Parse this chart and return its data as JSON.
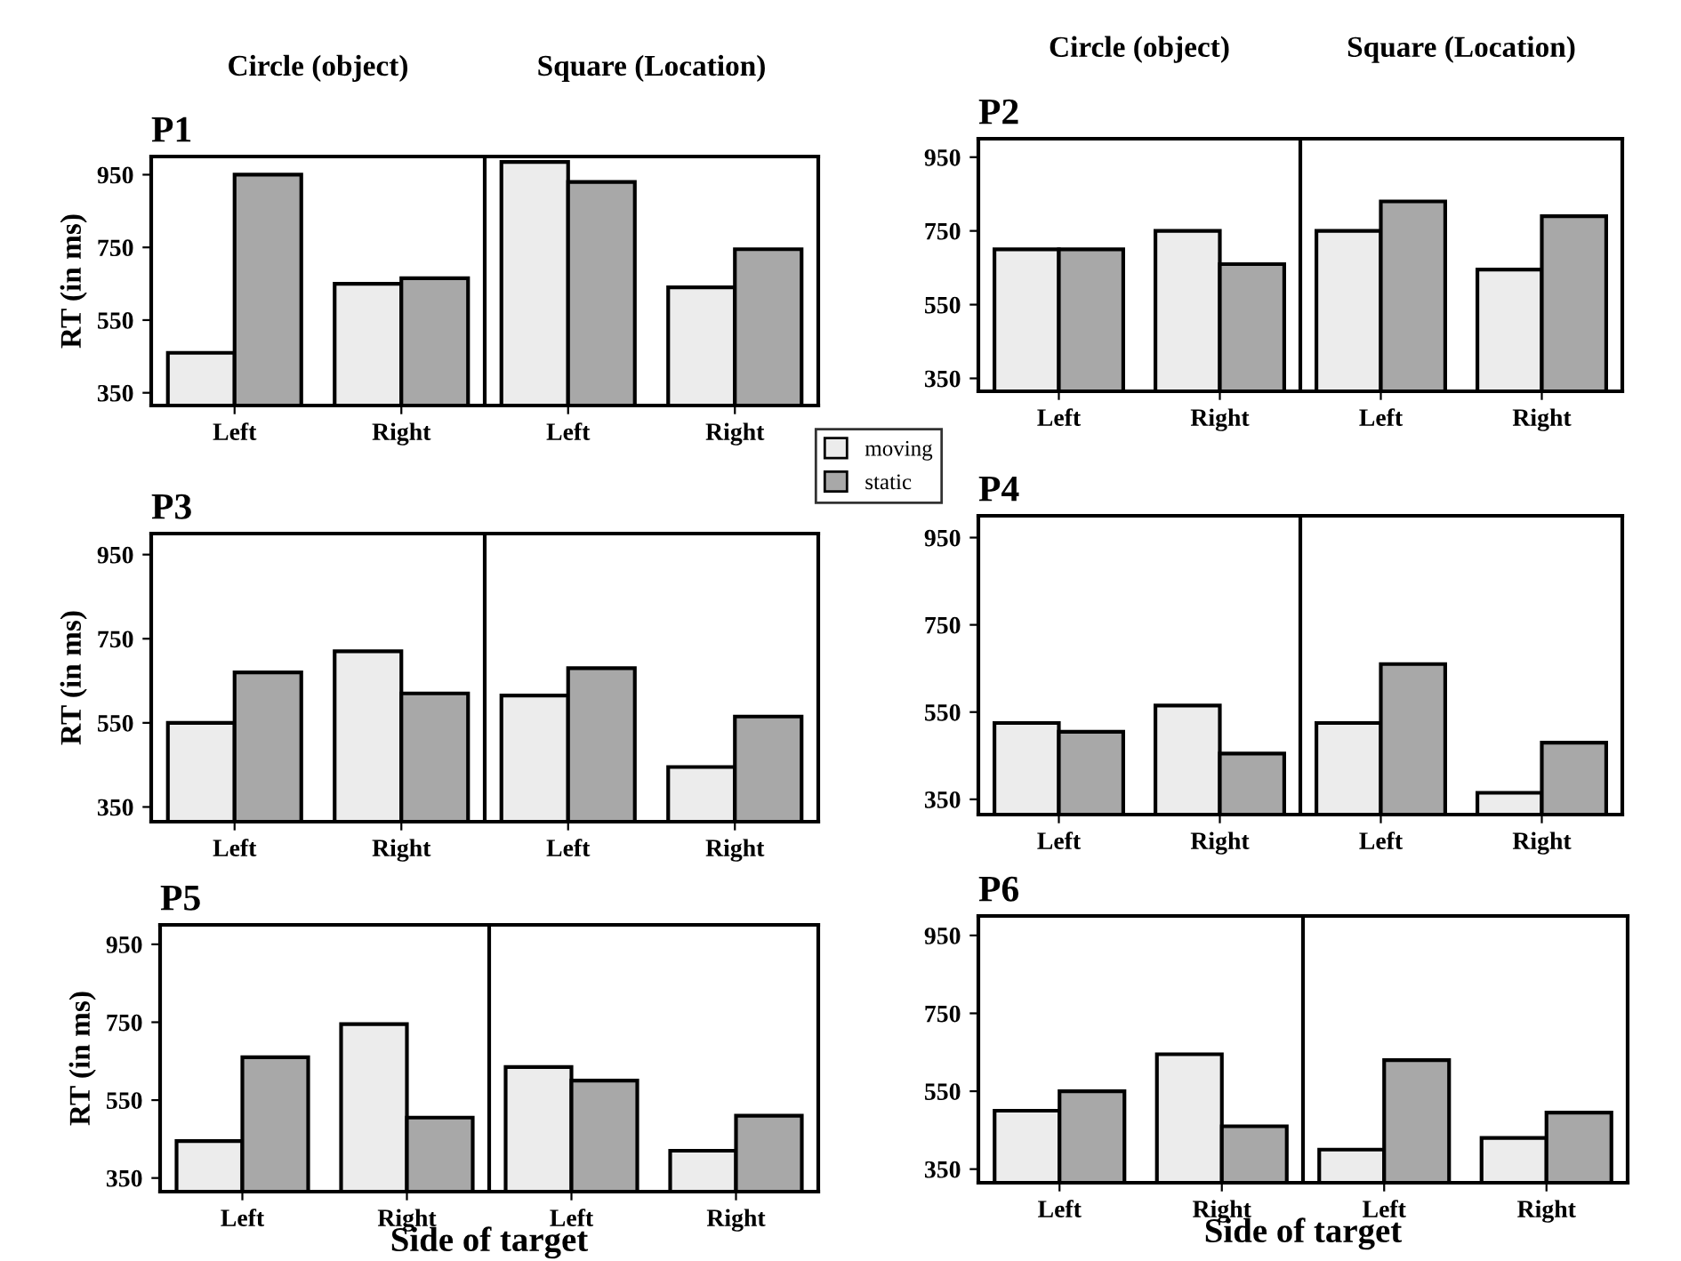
{
  "chart_data": [
    {
      "type": "bar",
      "title": "P1",
      "ylabel": "RT (in ms)",
      "annotations": [
        "Circle (object)",
        "Square (Location)"
      ],
      "categories": [
        "Left",
        "Right",
        "Left",
        "Right"
      ],
      "ylim": [
        315,
        1000
      ],
      "yticks": [
        350,
        550,
        750,
        950
      ],
      "legend": "right",
      "series": [
        {
          "name": "moving",
          "color": "#ececec",
          "values": [
            460,
            650,
            985,
            640
          ]
        },
        {
          "name": "static",
          "color": "#a8a8a8",
          "values": [
            950,
            665,
            930,
            745
          ]
        }
      ]
    },
    {
      "type": "bar",
      "title": "P2",
      "annotations": [
        "Circle (object)",
        "Square (Location)"
      ],
      "categories": [
        "Left",
        "Right",
        "Left",
        "Right"
      ],
      "ylim": [
        315,
        1000
      ],
      "yticks": [
        350,
        550,
        750,
        950
      ],
      "series": [
        {
          "color": "#ececec",
          "values": [
            700,
            750,
            750,
            645
          ]
        },
        {
          "color": "#a8a8a8",
          "values": [
            700,
            660,
            830,
            790
          ]
        }
      ]
    },
    {
      "type": "bar",
      "title": "P3",
      "ylabel": "RT (in ms)",
      "categories": [
        "Left",
        "Right",
        "Left",
        "Right"
      ],
      "ylim": [
        315,
        1000
      ],
      "yticks": [
        350,
        550,
        750,
        950
      ],
      "series": [
        {
          "color": "#ececec",
          "values": [
            550,
            720,
            615,
            445
          ]
        },
        {
          "color": "#a8a8a8",
          "values": [
            670,
            620,
            680,
            565
          ]
        }
      ]
    },
    {
      "type": "bar",
      "title": "P4",
      "categories": [
        "Left",
        "Right",
        "Left",
        "Right"
      ],
      "ylim": [
        315,
        1000
      ],
      "yticks": [
        350,
        550,
        750,
        950
      ],
      "series": [
        {
          "color": "#ececec",
          "values": [
            525,
            565,
            525,
            365
          ]
        },
        {
          "color": "#a8a8a8",
          "values": [
            505,
            455,
            660,
            480
          ]
        }
      ]
    },
    {
      "type": "bar",
      "title": "P5",
      "ylabel": "RT (in ms)",
      "xlabel": "Side of target",
      "categories": [
        "Left",
        "Right",
        "Left",
        "Right"
      ],
      "ylim": [
        315,
        1000
      ],
      "yticks": [
        350,
        550,
        750,
        950
      ],
      "series": [
        {
          "color": "#ececec",
          "values": [
            445,
            745,
            635,
            420
          ]
        },
        {
          "color": "#a8a8a8",
          "values": [
            660,
            505,
            600,
            510
          ]
        }
      ]
    },
    {
      "type": "bar",
      "title": "P6",
      "xlabel": "Side of target",
      "categories": [
        "Left",
        "Right",
        "Left",
        "Right"
      ],
      "ylim": [
        315,
        1000
      ],
      "yticks": [
        350,
        550,
        750,
        950
      ],
      "series": [
        {
          "color": "#ececec",
          "values": [
            500,
            645,
            400,
            430
          ]
        },
        {
          "color": "#a8a8a8",
          "values": [
            550,
            460,
            630,
            495
          ]
        }
      ]
    }
  ]
}
